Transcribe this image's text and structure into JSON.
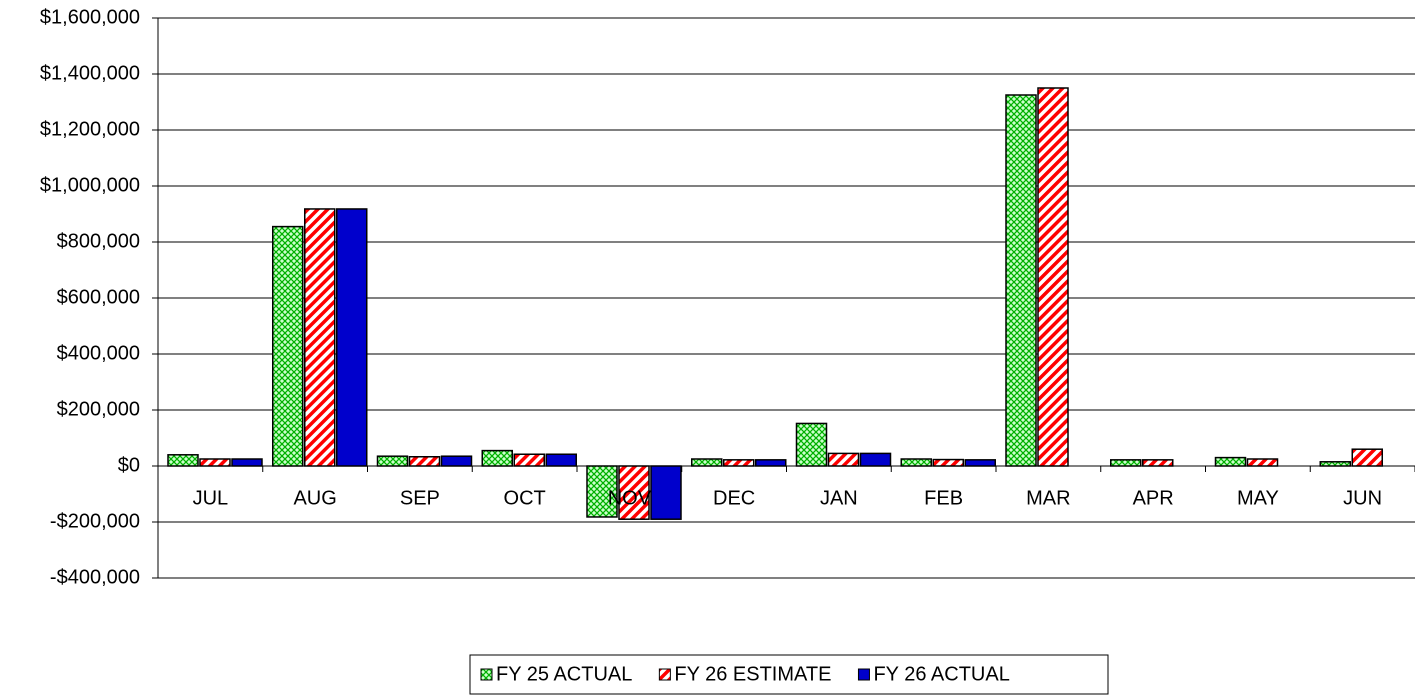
{
  "chart_data": {
    "type": "bar",
    "categories": [
      "JUL",
      "AUG",
      "SEP",
      "OCT",
      "NOV",
      "DEC",
      "JAN",
      "FEB",
      "MAR",
      "APR",
      "MAY",
      "JUN"
    ],
    "series": [
      {
        "name": "FY 25 ACTUAL",
        "color": "#00b000",
        "pattern": "crosshatch",
        "values": [
          40000,
          855000,
          35000,
          55000,
          -182000,
          25000,
          152000,
          25000,
          1325000,
          22000,
          30000,
          15000
        ]
      },
      {
        "name": "FY 26 ESTIMATE",
        "color": "#ff0000",
        "pattern": "diagonal",
        "values": [
          25000,
          918000,
          33000,
          42000,
          -190000,
          22000,
          45000,
          23000,
          1350000,
          22000,
          25000,
          60000
        ]
      },
      {
        "name": "FY 26 ACTUAL",
        "color": "#0000cc",
        "pattern": "solid",
        "values": [
          25000,
          918000,
          35000,
          42000,
          -190000,
          22000,
          45000,
          22000,
          null,
          null,
          null,
          null
        ]
      }
    ],
    "ylim": [
      -400000,
      1600000
    ],
    "yticks": [
      {
        "value": -400000,
        "label": "-$400,000"
      },
      {
        "value": -200000,
        "label": "-$200,000"
      },
      {
        "value": 0,
        "label": "$0"
      },
      {
        "value": 200000,
        "label": "$200,000"
      },
      {
        "value": 400000,
        "label": "$400,000"
      },
      {
        "value": 600000,
        "label": "$600,000"
      },
      {
        "value": 800000,
        "label": "$800,000"
      },
      {
        "value": 1000000,
        "label": "$1,000,000"
      },
      {
        "value": 1200000,
        "label": "$1,200,000"
      },
      {
        "value": 1400000,
        "label": "$1,400,000"
      },
      {
        "value": 1600000,
        "label": "$1,600,000"
      }
    ],
    "grid": true,
    "legend": "bottom"
  }
}
